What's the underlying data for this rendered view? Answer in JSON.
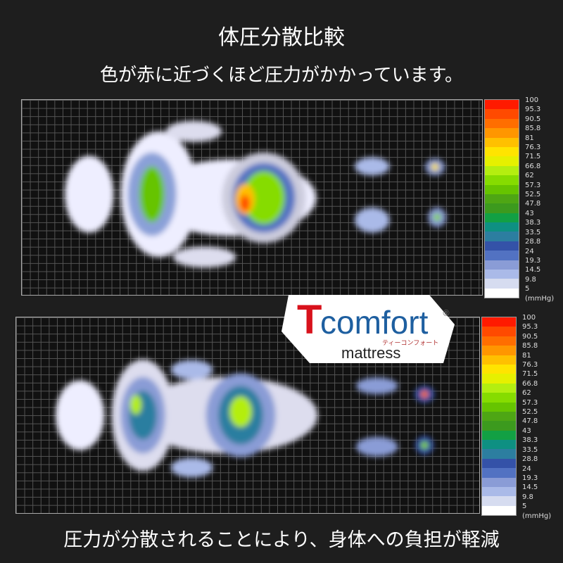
{
  "title": "体圧分散比較",
  "subtitle": "色が赤に近づくほど圧力がかかっています。",
  "footer": "圧力が分散されることにより、身体への負担が軽減",
  "scale": {
    "labels": [
      "100",
      "95.3",
      "90.5",
      "85.8",
      "81",
      "76.3",
      "71.5",
      "66.8",
      "62",
      "57.3",
      "52.5",
      "47.8",
      "43",
      "38.3",
      "33.5",
      "28.8",
      "24",
      "19.3",
      "14.5",
      "9.8",
      "5"
    ],
    "unit": "(mmHg)",
    "colors": [
      "#ff1a00",
      "#ff4a00",
      "#ff6e00",
      "#ff9600",
      "#ffc000",
      "#ffe400",
      "#e6f000",
      "#b4ee10",
      "#86dc00",
      "#66c400",
      "#4ea614",
      "#3c9a1e",
      "#12a044",
      "#0e9082",
      "#2c7ea0",
      "#3452a8",
      "#5272c2",
      "#8a9cd6",
      "#aabae8",
      "#d6dcf0"
    ]
  },
  "logo": {
    "brand_initial": "T",
    "brand_rest": "comfort",
    "registered": "®",
    "katakana": "ティーコンフォート",
    "product": "mattress",
    "brand_red": "#d8121c",
    "brand_blue": "#1e5fa0"
  }
}
